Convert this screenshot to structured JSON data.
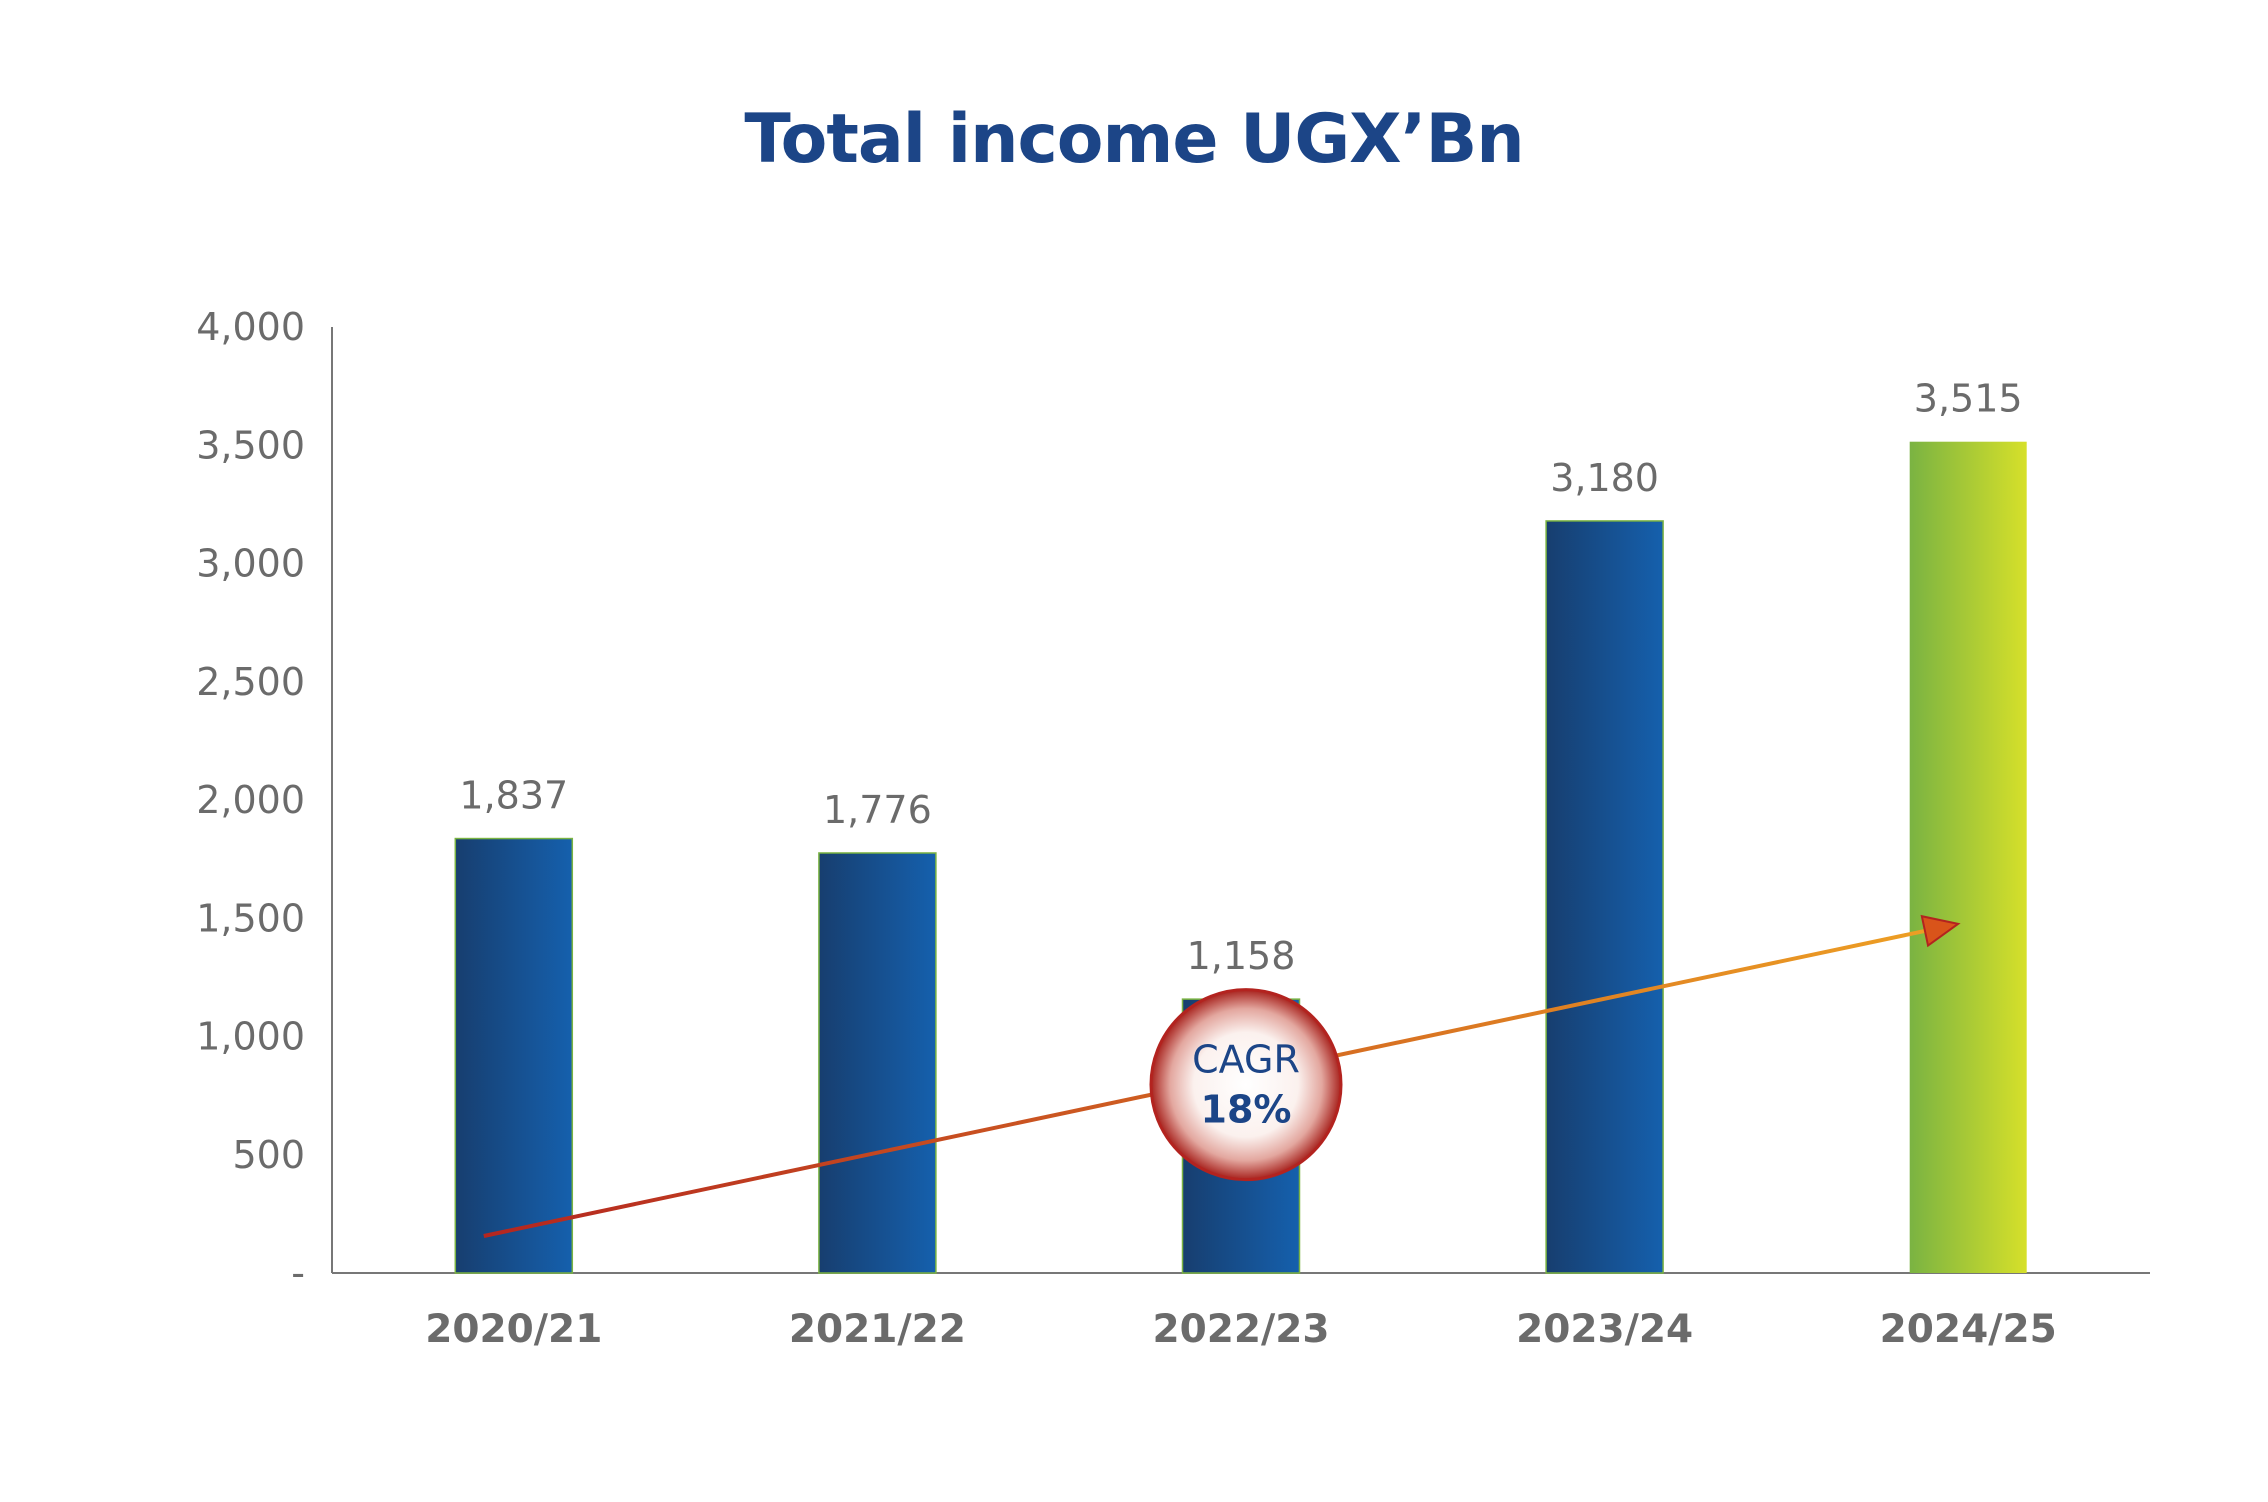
{
  "colors": {
    "title": "#1c4587",
    "bar_dark": "#173e6f",
    "bar_light": "#1560ad",
    "bar_highlight_start": "#7ab342",
    "bar_highlight_end": "#d6e02a",
    "axis": "#777777",
    "text": "#6b6b6b",
    "trend_start": "#b3231f",
    "trend_end": "#f0a524",
    "badge_ring": "#b3231f"
  },
  "chart_data": {
    "type": "bar",
    "title": "Total income UGX’Bn",
    "xlabel": "",
    "ylabel": "",
    "categories": [
      "2020/21",
      "2021/22",
      "2022/23",
      "2023/24",
      "2024/25"
    ],
    "values": [
      1837,
      1776,
      1158,
      3180,
      3515
    ],
    "value_labels": [
      "1,837",
      "1,776",
      "1,158",
      "3,180",
      "3,515"
    ],
    "highlight_index": 4,
    "ylim": [
      0,
      4000
    ],
    "yticks": [
      0,
      500,
      1000,
      1500,
      2000,
      2500,
      3000,
      3500,
      4000
    ],
    "ytick_labels": [
      "-",
      "500",
      "1,000",
      "1,500",
      "2,000",
      "2,500",
      "3,000",
      "3,500",
      "4,000"
    ],
    "grid": false,
    "legend": "none",
    "annotation": {
      "type": "trend-arrow",
      "from_category": 0,
      "to_category": 4,
      "badge_lines": [
        "CAGR",
        "18%"
      ]
    }
  }
}
